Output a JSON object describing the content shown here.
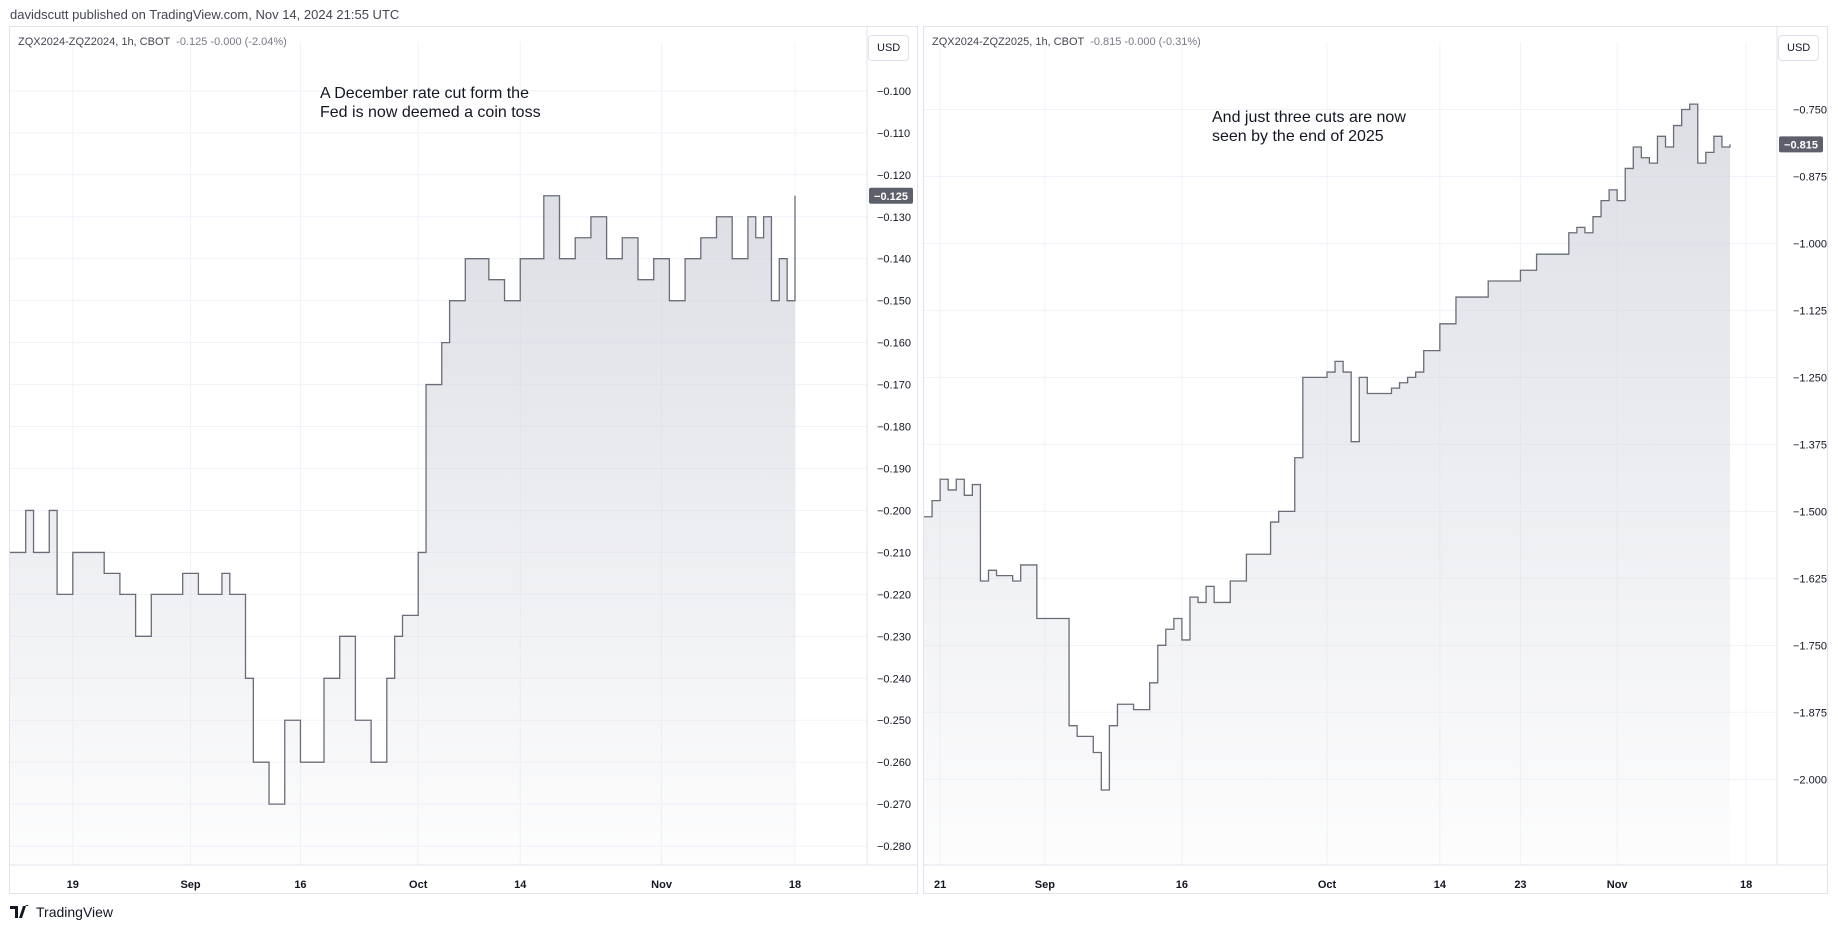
{
  "header": {
    "caption": "davidscutt published on TradingView.com, Nov 14, 2024 21:55 UTC"
  },
  "panels": [
    {
      "symbol": "ZQX2024-ZQZ2024, 1h, CBOT",
      "legend_values": "-0.125  -0.000 (-2.04%)",
      "currency_button": "USD",
      "annotation": [
        "A December rate cut form the",
        "Fed is now deemed a coin toss"
      ],
      "last_price_label": "-0.125"
    },
    {
      "symbol": "ZQX2024-ZQZ2025, 1h, CBOT",
      "legend_values": "-0.815  -0.000 (-0.31%)",
      "currency_button": "USD",
      "annotation": [
        "And just three cuts are now",
        "seen by the end of 2025"
      ],
      "last_price_label": "-0.815"
    }
  ],
  "footer": {
    "brand": "TradingView"
  },
  "colors": {
    "line": "#6a6d78",
    "area_top": "#d1d4dc",
    "grid": "#f0f3fa",
    "price_label_bg": "#5d606b"
  },
  "chart_data": [
    {
      "type": "area",
      "title": "ZQX2024-ZQZ2024, 1h, CBOT",
      "x_ticks": [
        "19",
        "Sep",
        "16",
        "Oct",
        "14",
        "Nov",
        "18"
      ],
      "x_tick_index": [
        0.08,
        0.23,
        0.37,
        0.52,
        0.65,
        0.83,
        1.0
      ],
      "y_ticks": [
        -0.1,
        -0.11,
        -0.12,
        -0.13,
        -0.14,
        -0.15,
        -0.16,
        -0.17,
        -0.18,
        -0.19,
        -0.2,
        -0.21,
        -0.22,
        -0.23,
        -0.24,
        -0.25,
        -0.26,
        -0.27,
        -0.28
      ],
      "ylim": [
        -0.2845,
        -0.0955
      ],
      "last_value": -0.125,
      "x": [
        0,
        0.02,
        0.03,
        0.05,
        0.06,
        0.08,
        0.1,
        0.12,
        0.14,
        0.16,
        0.18,
        0.2,
        0.22,
        0.24,
        0.26,
        0.27,
        0.28,
        0.3,
        0.31,
        0.33,
        0.35,
        0.37,
        0.38,
        0.4,
        0.42,
        0.44,
        0.46,
        0.48,
        0.49,
        0.5,
        0.52,
        0.53,
        0.55,
        0.56,
        0.57,
        0.58,
        0.59,
        0.61,
        0.63,
        0.65,
        0.68,
        0.7,
        0.72,
        0.74,
        0.76,
        0.78,
        0.8,
        0.82,
        0.84,
        0.86,
        0.88,
        0.9,
        0.92,
        0.94,
        0.95,
        0.96,
        0.97,
        0.98,
        0.99,
        1.0
      ],
      "y": [
        -0.21,
        -0.2,
        -0.21,
        -0.2,
        -0.22,
        -0.21,
        -0.21,
        -0.215,
        -0.22,
        -0.23,
        -0.22,
        -0.22,
        -0.215,
        -0.22,
        -0.22,
        -0.215,
        -0.22,
        -0.24,
        -0.26,
        -0.27,
        -0.25,
        -0.26,
        -0.26,
        -0.24,
        -0.23,
        -0.25,
        -0.26,
        -0.24,
        -0.23,
        -0.225,
        -0.21,
        -0.17,
        -0.16,
        -0.15,
        -0.15,
        -0.14,
        -0.14,
        -0.145,
        -0.15,
        -0.14,
        -0.125,
        -0.14,
        -0.135,
        -0.13,
        -0.14,
        -0.135,
        -0.145,
        -0.14,
        -0.15,
        -0.14,
        -0.135,
        -0.13,
        -0.14,
        -0.13,
        -0.135,
        -0.13,
        -0.15,
        -0.14,
        -0.15,
        -0.125
      ]
    },
    {
      "type": "area",
      "title": "ZQX2024-ZQZ2025, 1h, CBOT",
      "x_ticks": [
        "21",
        "Sep",
        "16",
        "Oct",
        "14",
        "23",
        "Nov",
        "18"
      ],
      "x_tick_index": [
        0.02,
        0.15,
        0.32,
        0.5,
        0.64,
        0.74,
        0.86,
        1.02
      ],
      "y_ticks": [
        -0.75,
        -0.875,
        -1.0,
        -1.125,
        -1.25,
        -1.375,
        -1.5,
        -1.625,
        -1.75,
        -1.875,
        -2.0
      ],
      "ylim": [
        -2.16,
        -0.68
      ],
      "last_value": -0.815,
      "x": [
        0,
        0.01,
        0.02,
        0.03,
        0.04,
        0.05,
        0.06,
        0.07,
        0.08,
        0.09,
        0.1,
        0.11,
        0.12,
        0.14,
        0.16,
        0.18,
        0.19,
        0.2,
        0.21,
        0.22,
        0.23,
        0.24,
        0.26,
        0.28,
        0.29,
        0.3,
        0.31,
        0.32,
        0.33,
        0.34,
        0.35,
        0.36,
        0.37,
        0.38,
        0.4,
        0.41,
        0.43,
        0.44,
        0.46,
        0.47,
        0.49,
        0.5,
        0.51,
        0.52,
        0.53,
        0.54,
        0.55,
        0.56,
        0.57,
        0.58,
        0.59,
        0.6,
        0.61,
        0.62,
        0.63,
        0.64,
        0.66,
        0.68,
        0.7,
        0.72,
        0.74,
        0.76,
        0.78,
        0.8,
        0.81,
        0.82,
        0.83,
        0.84,
        0.85,
        0.86,
        0.87,
        0.88,
        0.89,
        0.9,
        0.91,
        0.92,
        0.93,
        0.94,
        0.95,
        0.96,
        0.97,
        0.98,
        0.99,
        1.0
      ],
      "y": [
        -1.51,
        -1.48,
        -1.44,
        -1.46,
        -1.44,
        -1.47,
        -1.45,
        -1.63,
        -1.61,
        -1.62,
        -1.62,
        -1.63,
        -1.6,
        -1.7,
        -1.7,
        -1.9,
        -1.92,
        -1.92,
        -1.95,
        -2.02,
        -1.9,
        -1.86,
        -1.87,
        -1.82,
        -1.75,
        -1.72,
        -1.7,
        -1.74,
        -1.66,
        -1.67,
        -1.64,
        -1.67,
        -1.67,
        -1.63,
        -1.58,
        -1.58,
        -1.52,
        -1.5,
        -1.4,
        -1.25,
        -1.25,
        -1.24,
        -1.22,
        -1.24,
        -1.37,
        -1.25,
        -1.28,
        -1.28,
        -1.28,
        -1.27,
        -1.26,
        -1.25,
        -1.24,
        -1.2,
        -1.2,
        -1.15,
        -1.1,
        -1.1,
        -1.07,
        -1.07,
        -1.05,
        -1.02,
        -1.02,
        -0.98,
        -0.97,
        -0.98,
        -0.95,
        -0.92,
        -0.9,
        -0.92,
        -0.86,
        -0.82,
        -0.84,
        -0.85,
        -0.8,
        -0.82,
        -0.78,
        -0.75,
        -0.74,
        -0.85,
        -0.83,
        -0.8,
        -0.82,
        -0.815
      ]
    }
  ]
}
